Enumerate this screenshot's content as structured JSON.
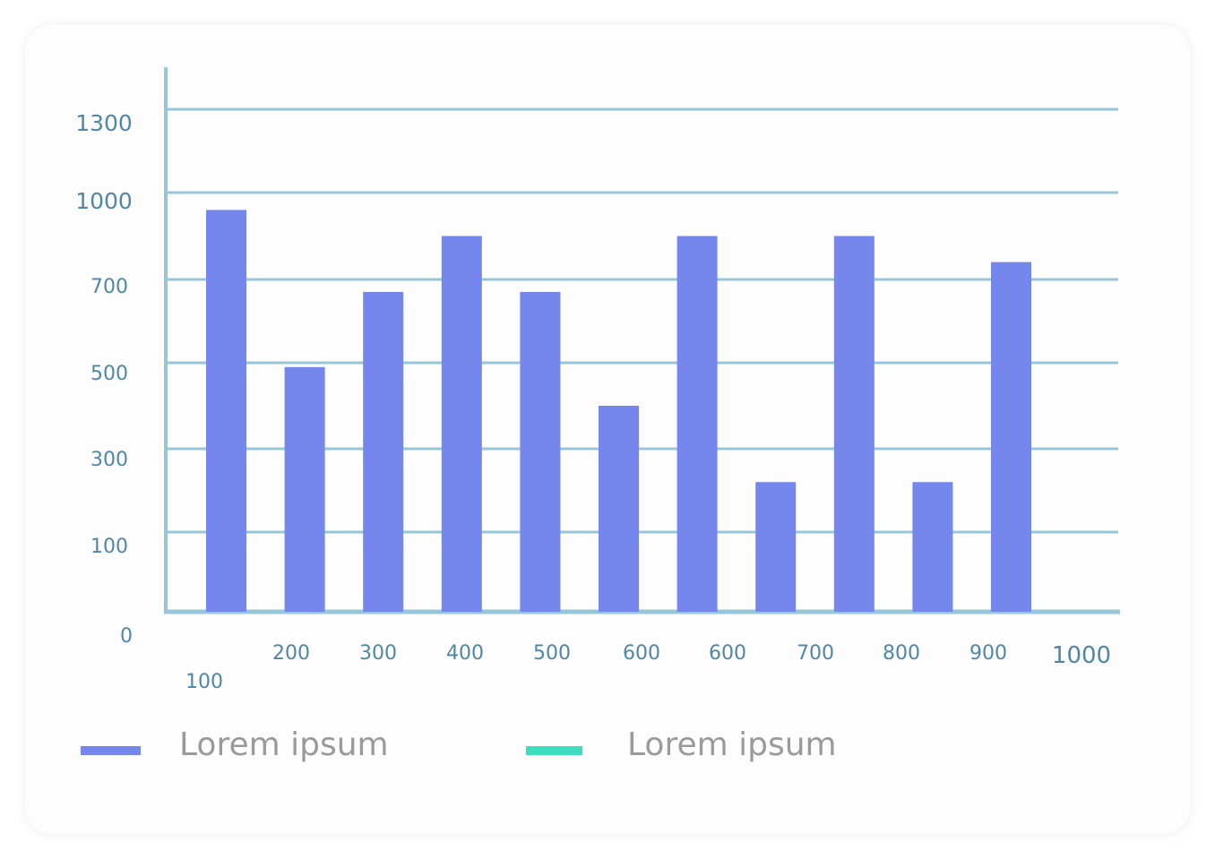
{
  "colors": {
    "bar": "#7587ec",
    "axis": "#96c6d8",
    "tick_text": "#4f87a6",
    "legend_text": "#9a9a9a",
    "legend_series_2": "#3fdcbf"
  },
  "chart_data": {
    "type": "bar",
    "title": "",
    "xlabel": "",
    "ylabel": "",
    "y_ticks": [
      "0",
      "100",
      "300",
      "500",
      "700",
      "1000",
      "1300"
    ],
    "x_tick_labels": [
      "100",
      "200",
      "300",
      "400",
      "500",
      "600",
      "600",
      "700",
      "800",
      "900",
      "1000"
    ],
    "values": [
      940,
      490,
      670,
      850,
      670,
      400,
      850,
      220,
      850,
      220,
      760
    ],
    "grid": true,
    "legend_position": "bottom",
    "legend": [
      {
        "label": "Lorem ipsum",
        "color": "#7587ec"
      },
      {
        "label": "Lorem ipsum",
        "color": "#3fdcbf"
      }
    ]
  }
}
